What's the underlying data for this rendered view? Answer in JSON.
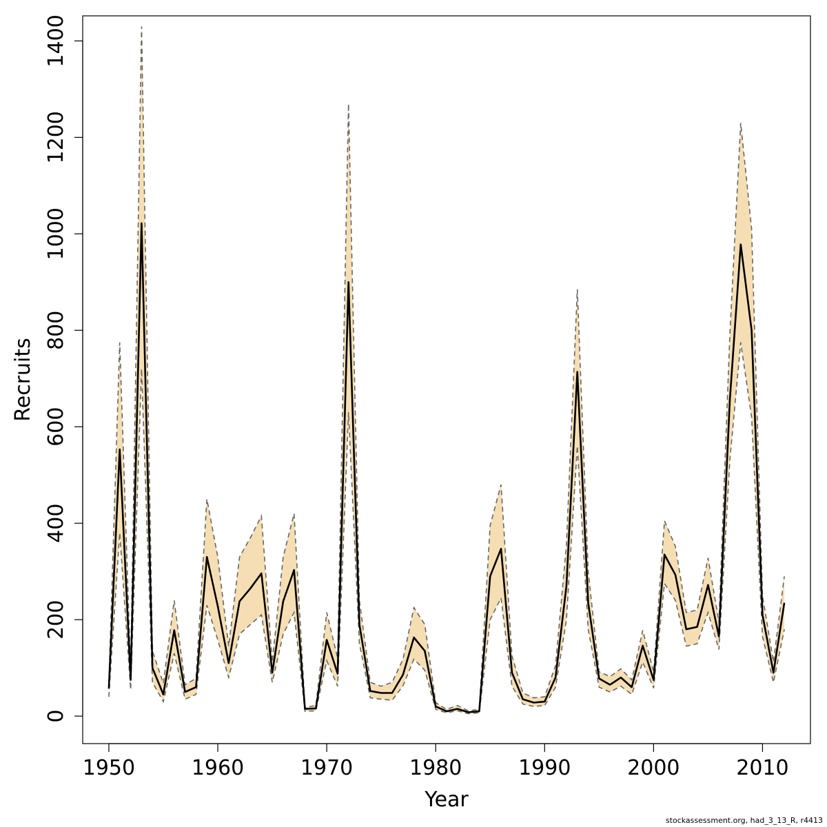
{
  "footer": "stockassessment.org, had_3_13_R, r4413",
  "chart_data": {
    "type": "line",
    "title": "",
    "xlabel": "Year",
    "ylabel": "Recruits",
    "xlim": [
      1947.6,
      2014.4
    ],
    "ylim": [
      -57,
      1452
    ],
    "xticks": [
      1950,
      1960,
      1970,
      1980,
      1990,
      2000,
      2010
    ],
    "yticks": [
      0,
      200,
      400,
      600,
      800,
      1000,
      1200,
      1400
    ],
    "grid": false,
    "legend": "none",
    "colors": {
      "band": "#f5deb3",
      "estimate": "#000000",
      "bounds": "#666666"
    },
    "x": [
      1950,
      1951,
      1952,
      1953,
      1954,
      1955,
      1956,
      1957,
      1958,
      1959,
      1960,
      1961,
      1962,
      1963,
      1964,
      1965,
      1966,
      1967,
      1968,
      1969,
      1970,
      1971,
      1972,
      1973,
      1974,
      1975,
      1976,
      1977,
      1978,
      1979,
      1980,
      1981,
      1982,
      1983,
      1984,
      1985,
      1986,
      1987,
      1988,
      1989,
      1990,
      1991,
      1992,
      1993,
      1994,
      1995,
      1996,
      1997,
      1998,
      1999,
      2000,
      2001,
      2002,
      2003,
      2004,
      2005,
      2006,
      2007,
      2008,
      2009,
      2010,
      2011,
      2012
    ],
    "series": [
      {
        "role": "estimate",
        "values": [
          57,
          553,
          75,
          1022,
          100,
          45,
          178,
          50,
          60,
          330,
          228,
          110,
          238,
          265,
          296,
          90,
          238,
          303,
          15,
          16,
          158,
          88,
          900,
          190,
          52,
          48,
          48,
          86,
          163,
          135,
          20,
          10,
          15,
          8,
          10,
          290,
          347,
          90,
          35,
          28,
          30,
          80,
          270,
          714,
          235,
          78,
          65,
          80,
          60,
          146,
          75,
          335,
          293,
          180,
          185,
          272,
          165,
          655,
          978,
          800,
          210,
          90,
          235
        ]
      },
      {
        "role": "upper",
        "values": [
          65,
          775,
          92,
          1430,
          135,
          68,
          240,
          65,
          78,
          450,
          330,
          145,
          330,
          370,
          415,
          112,
          330,
          420,
          18,
          22,
          215,
          120,
          1270,
          240,
          70,
          62,
          70,
          118,
          225,
          190,
          28,
          14,
          22,
          11,
          14,
          395,
          480,
          125,
          48,
          38,
          40,
          105,
          355,
          885,
          300,
          92,
          82,
          98,
          75,
          178,
          92,
          405,
          352,
          215,
          220,
          328,
          195,
          790,
          1230,
          1010,
          250,
          112,
          290
        ]
      },
      {
        "role": "lower",
        "values": [
          40,
          380,
          55,
          720,
          70,
          30,
          130,
          35,
          45,
          230,
          158,
          80,
          170,
          190,
          210,
          70,
          170,
          215,
          10,
          11,
          115,
          62,
          630,
          150,
          38,
          35,
          33,
          63,
          118,
          95,
          14,
          7,
          11,
          5,
          7,
          200,
          245,
          62,
          25,
          20,
          22,
          60,
          200,
          560,
          180,
          60,
          50,
          62,
          45,
          112,
          58,
          275,
          240,
          145,
          150,
          215,
          138,
          530,
          775,
          620,
          165,
          70,
          180
        ]
      }
    ]
  }
}
